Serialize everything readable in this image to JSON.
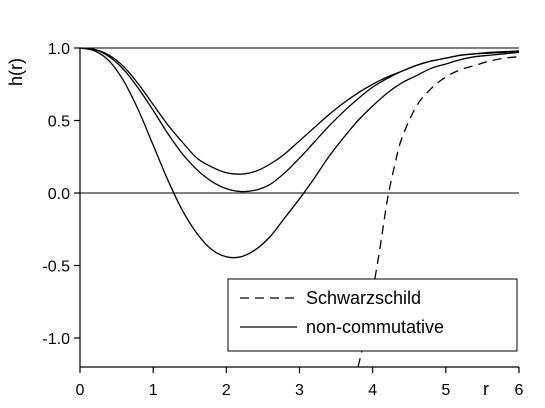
{
  "chart_data": {
    "type": "line",
    "title": "",
    "xlabel": "r",
    "ylabel": "h(r)",
    "xlim": [
      0,
      6
    ],
    "ylim": [
      -1.2,
      1.0
    ],
    "x_ticks": [
      "0",
      "1",
      "2",
      "3",
      "4",
      "5",
      "6"
    ],
    "y_ticks": [
      "1.0",
      "0.5",
      "0.0",
      "-0.5",
      "-1.0"
    ],
    "legend": {
      "position": "bottom-right",
      "entries": [
        "Schwarzschild",
        "non-commutative"
      ]
    },
    "reference_lines": [
      {
        "y": 0
      },
      {
        "y": 1
      }
    ],
    "series": [
      {
        "name": "Schwarzschild",
        "style": "dashed",
        "x": [
          3.8,
          3.9,
          4.0,
          4.1,
          4.2,
          4.3,
          4.4,
          4.6,
          4.8,
          5.0,
          5.2,
          5.4,
          5.6,
          5.8,
          6.0
        ],
        "y": [
          -1.2,
          -0.98,
          -0.68,
          -0.38,
          -0.05,
          0.19,
          0.38,
          0.6,
          0.72,
          0.8,
          0.85,
          0.88,
          0.91,
          0.93,
          0.94
        ]
      },
      {
        "name": "non-commutative",
        "style": "solid",
        "x": [
          0,
          0.2,
          0.4,
          0.6,
          0.8,
          1.0,
          1.2,
          1.4,
          1.6,
          1.8,
          2.0,
          2.2,
          2.4,
          2.6,
          2.8,
          3.0,
          3.2,
          3.4,
          3.6,
          3.8,
          4.0,
          4.2,
          4.4,
          4.6,
          4.8,
          5.0,
          5.2,
          5.4,
          5.6,
          5.8,
          6.0
        ],
        "y": [
          1.0,
          0.99,
          0.94,
          0.85,
          0.72,
          0.57,
          0.41,
          0.27,
          0.16,
          0.08,
          0.03,
          0.01,
          0.02,
          0.06,
          0.14,
          0.24,
          0.35,
          0.46,
          0.56,
          0.65,
          0.73,
          0.79,
          0.84,
          0.88,
          0.91,
          0.93,
          0.95,
          0.96,
          0.965,
          0.97,
          0.975
        ]
      },
      {
        "name": "",
        "style": "solid",
        "x": [
          0,
          0.2,
          0.4,
          0.6,
          0.8,
          1.0,
          1.2,
          1.4,
          1.6,
          1.8,
          2.0,
          2.2,
          2.4,
          2.6,
          2.8,
          3.0,
          3.2,
          3.4,
          3.6,
          3.8,
          4.0,
          4.2,
          4.4,
          4.6,
          4.8,
          5.0,
          5.2,
          5.4,
          5.6,
          5.8,
          6.0
        ],
        "y": [
          1.0,
          0.99,
          0.95,
          0.87,
          0.75,
          0.61,
          0.47,
          0.35,
          0.24,
          0.18,
          0.14,
          0.13,
          0.15,
          0.2,
          0.27,
          0.36,
          0.45,
          0.54,
          0.62,
          0.69,
          0.75,
          0.8,
          0.84,
          0.88,
          0.91,
          0.93,
          0.95,
          0.96,
          0.97,
          0.975,
          0.98
        ]
      },
      {
        "name": "",
        "style": "solid",
        "x": [
          0,
          0.2,
          0.4,
          0.6,
          0.8,
          1.0,
          1.2,
          1.4,
          1.6,
          1.8,
          2.0,
          2.2,
          2.4,
          2.6,
          2.8,
          3.0,
          3.2,
          3.4,
          3.6,
          3.8,
          4.0,
          4.2,
          4.4,
          4.6,
          4.8,
          5.0,
          5.2,
          5.4,
          5.6,
          5.8,
          6.0
        ],
        "y": [
          1.0,
          0.98,
          0.91,
          0.77,
          0.57,
          0.33,
          0.09,
          -0.12,
          -0.28,
          -0.39,
          -0.44,
          -0.44,
          -0.39,
          -0.3,
          -0.17,
          -0.04,
          0.1,
          0.25,
          0.38,
          0.5,
          0.6,
          0.69,
          0.76,
          0.81,
          0.86,
          0.89,
          0.92,
          0.94,
          0.95,
          0.96,
          0.97
        ]
      }
    ]
  }
}
